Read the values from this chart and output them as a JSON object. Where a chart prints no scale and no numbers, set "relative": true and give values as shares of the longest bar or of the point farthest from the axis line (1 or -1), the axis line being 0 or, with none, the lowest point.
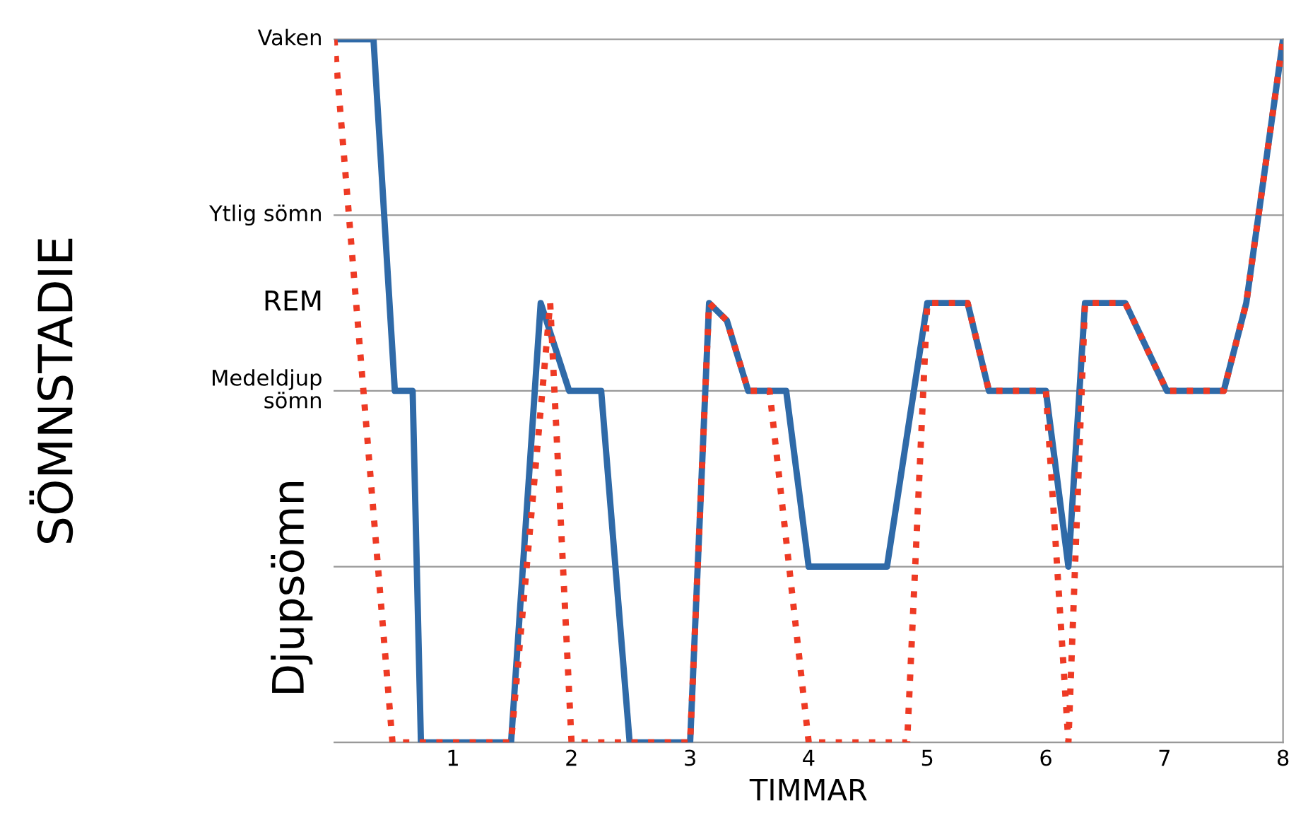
{
  "chart_data": {
    "type": "line",
    "xlabel": "TIMMAR",
    "relative": true,
    "xlim": [
      0,
      8
    ],
    "xticks": [
      1,
      2,
      3,
      4,
      5,
      6,
      7,
      8
    ],
    "annotations": [
      "SÖMNSTADIE",
      "REM",
      "Djupsömn"
    ],
    "ref_lines": [
      {
        "axis": "y",
        "value": 1,
        "label": "Vaken",
        "color": "#999999"
      },
      {
        "axis": "y",
        "value": 0.75,
        "label": "Ytlig sömn",
        "color": "#999999"
      },
      {
        "axis": "y",
        "value": 0.5,
        "label": "Medeldjup\nsömn",
        "color": "#999999"
      },
      {
        "axis": "y",
        "value": 0.25,
        "color": "#999999"
      }
    ],
    "grid": false,
    "legend": false,
    "series": [
      {
        "color": "#2f6aa8",
        "line_style": "solid",
        "x": [
          0,
          0.33,
          0.51,
          0.66,
          0.73,
          1.49,
          1.74,
          1.98,
          2.25,
          2.49,
          3.0,
          3.16,
          3.31,
          3.49,
          3.81,
          4.0,
          4.66,
          5.0,
          5.34,
          5.52,
          6.0,
          6.19,
          6.33,
          6.67,
          7.02,
          7.5,
          7.69,
          8.0
        ],
        "values": [
          1,
          1,
          0.5,
          0.5,
          0,
          0,
          0.625,
          0.5,
          0.5,
          0,
          0,
          0.625,
          0.6,
          0.5,
          0.5,
          0.25,
          0.25,
          0.625,
          0.625,
          0.5,
          0.5,
          0.25,
          0.625,
          0.625,
          0.5,
          0.5,
          0.625,
          1
        ]
      },
      {
        "color": "#ee3a24",
        "line_style": "dotted",
        "x": [
          0,
          0.49,
          1.49,
          1.82,
          2.0,
          3.0,
          3.16,
          3.31,
          3.49,
          3.67,
          4.0,
          4.83,
          5.0,
          5.34,
          5.52,
          6.0,
          6.19,
          6.33,
          6.67,
          7.02,
          7.5,
          7.69,
          8.0
        ],
        "values": [
          1,
          0,
          0,
          0.625,
          0,
          0,
          0.625,
          0.6,
          0.5,
          0.5,
          0,
          0,
          0.625,
          0.625,
          0.5,
          0.5,
          0,
          0.625,
          0.625,
          0.5,
          0.5,
          0.625,
          1
        ]
      }
    ]
  }
}
